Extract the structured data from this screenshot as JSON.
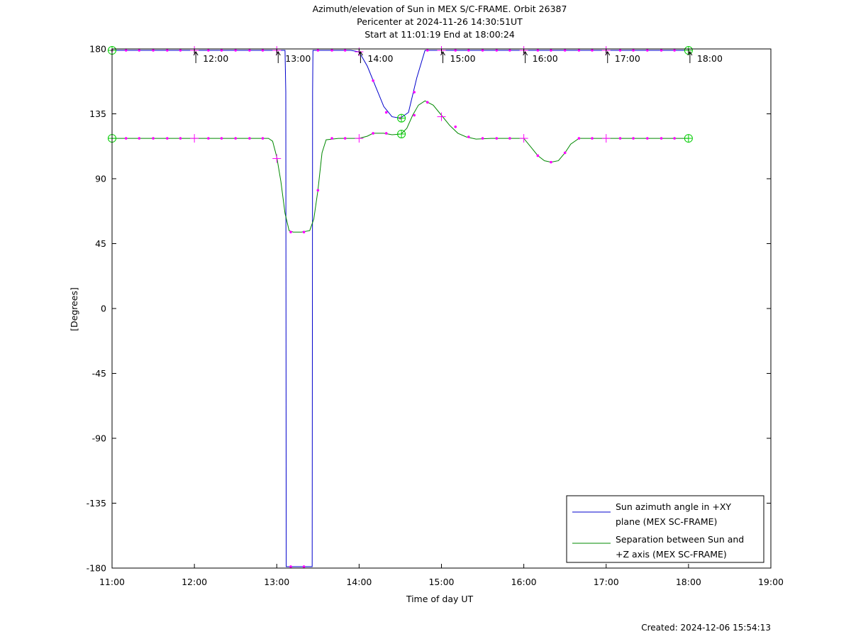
{
  "chart_data": {
    "type": "line",
    "title_lines": [
      "Azimuth/elevation of Sun in MEX S/C-FRAME.  Orbit 26387",
      "Pericenter at 2024-11-26 14:30:51UT",
      "Start at 11:01:19 End at 18:00:24"
    ],
    "xlabel": "Time of day UT",
    "ylabel": "[Degrees]",
    "xlim": [
      11,
      19
    ],
    "ylim": [
      -180,
      180
    ],
    "x_ticks": [
      {
        "v": 11,
        "label": "11:00"
      },
      {
        "v": 12,
        "label": "12:00"
      },
      {
        "v": 13,
        "label": "13:00"
      },
      {
        "v": 14,
        "label": "14:00"
      },
      {
        "v": 15,
        "label": "15:00"
      },
      {
        "v": 16,
        "label": "16:00"
      },
      {
        "v": 17,
        "label": "17:00"
      },
      {
        "v": 18,
        "label": "18:00"
      },
      {
        "v": 19,
        "label": "19:00"
      }
    ],
    "y_ticks": [
      {
        "v": 180,
        "label": "180"
      },
      {
        "v": 135,
        "label": "135"
      },
      {
        "v": 90,
        "label": "90"
      },
      {
        "v": 45,
        "label": "45"
      },
      {
        "v": 0,
        "label": "0"
      },
      {
        "v": -45,
        "label": "-45"
      },
      {
        "v": -90,
        "label": "-90"
      },
      {
        "v": -135,
        "label": "-135"
      },
      {
        "v": -180,
        "label": "-180"
      }
    ],
    "hour_annotations": [
      {
        "x": 12,
        "label": "12:00"
      },
      {
        "x": 13,
        "label": "13:00"
      },
      {
        "x": 14,
        "label": "14:00"
      },
      {
        "x": 15,
        "label": "15:00"
      },
      {
        "x": 16,
        "label": "16:00"
      },
      {
        "x": 17,
        "label": "17:00"
      },
      {
        "x": 18,
        "label": "18:00"
      }
    ],
    "annotation_y": 180,
    "pericenter_x": 14.514,
    "legend_position": "bottom-right",
    "grid": false,
    "series": [
      {
        "name_lines": [
          "Sun azimuth angle in +XY",
          "plane (MEX SC-FRAME)"
        ],
        "color": "#0000cc",
        "x": [
          11.0,
          12.9,
          13.1,
          13.11,
          13.115,
          13.4,
          13.43,
          13.435,
          13.44,
          13.5,
          13.9,
          14.0,
          14.1,
          14.2,
          14.3,
          14.4,
          14.5,
          14.6,
          14.7,
          14.8,
          15.0,
          16.0,
          17.0,
          18.0
        ],
        "y": [
          179,
          179,
          179,
          150,
          -179,
          -179,
          -179,
          150,
          179,
          179,
          179,
          178,
          168,
          154,
          140,
          133,
          132,
          136,
          160,
          179,
          179,
          179,
          179,
          179
        ]
      },
      {
        "name_lines": [
          "Separation between Sun and",
          "+Z axis (MEX SC-FRAME)"
        ],
        "color": "#008800",
        "x": [
          11.0,
          12.9,
          12.95,
          13.0,
          13.05,
          13.1,
          13.15,
          13.2,
          13.3,
          13.4,
          13.45,
          13.5,
          13.55,
          13.6,
          13.75,
          14.0,
          14.1,
          14.17,
          14.3,
          14.4,
          14.51,
          14.58,
          14.65,
          14.72,
          14.8,
          14.9,
          15.0,
          15.1,
          15.2,
          15.3,
          15.42,
          15.6,
          15.8,
          16.0,
          16.1,
          16.17,
          16.25,
          16.33,
          16.42,
          16.5,
          16.57,
          16.67,
          17.0,
          17.5,
          18.0
        ],
        "y": [
          118,
          118,
          116,
          105,
          88,
          66,
          54,
          53,
          53,
          54,
          62,
          82,
          108,
          117,
          118,
          118,
          119.5,
          121.5,
          121.5,
          120.5,
          121,
          125,
          134,
          141,
          144,
          141,
          134,
          127,
          121.5,
          119,
          117.5,
          118,
          118,
          118,
          111,
          106,
          102.5,
          101.5,
          102.5,
          108,
          114,
          118,
          118,
          118,
          118
        ]
      }
    ],
    "markers": {
      "color": "#ff00ff",
      "dots": [
        [
          11.0,
          179
        ],
        [
          11.17,
          179
        ],
        [
          11.33,
          179
        ],
        [
          11.5,
          179
        ],
        [
          11.67,
          179
        ],
        [
          11.83,
          179
        ],
        [
          12.17,
          179
        ],
        [
          12.33,
          179
        ],
        [
          12.5,
          179
        ],
        [
          12.67,
          179
        ],
        [
          12.83,
          179
        ],
        [
          13.5,
          179
        ],
        [
          13.67,
          179
        ],
        [
          13.83,
          179
        ],
        [
          14.17,
          158
        ],
        [
          14.33,
          136
        ],
        [
          14.5,
          132
        ],
        [
          14.67,
          150
        ],
        [
          14.83,
          179
        ],
        [
          15.17,
          179
        ],
        [
          15.33,
          179
        ],
        [
          15.5,
          179
        ],
        [
          15.67,
          179
        ],
        [
          15.83,
          179
        ],
        [
          16.17,
          179
        ],
        [
          16.33,
          179
        ],
        [
          16.5,
          179
        ],
        [
          16.67,
          179
        ],
        [
          16.83,
          179
        ],
        [
          17.17,
          179
        ],
        [
          17.33,
          179
        ],
        [
          17.5,
          179
        ],
        [
          17.67,
          179
        ],
        [
          17.83,
          179
        ],
        [
          11.17,
          118
        ],
        [
          11.33,
          118
        ],
        [
          11.5,
          118
        ],
        [
          11.67,
          118
        ],
        [
          11.83,
          118
        ],
        [
          12.17,
          118
        ],
        [
          12.33,
          118
        ],
        [
          12.5,
          118
        ],
        [
          12.67,
          118
        ],
        [
          12.83,
          118
        ],
        [
          13.17,
          53
        ],
        [
          13.33,
          53
        ],
        [
          13.5,
          82
        ],
        [
          13.67,
          118
        ],
        [
          13.83,
          118
        ],
        [
          14.17,
          121.5
        ],
        [
          14.33,
          121.5
        ],
        [
          14.67,
          134
        ],
        [
          14.83,
          143
        ],
        [
          15.17,
          126
        ],
        [
          15.33,
          119
        ],
        [
          15.5,
          118
        ],
        [
          15.67,
          118
        ],
        [
          15.83,
          118
        ],
        [
          16.17,
          106
        ],
        [
          16.33,
          101.5
        ],
        [
          16.5,
          108
        ],
        [
          16.67,
          118
        ],
        [
          16.83,
          118
        ],
        [
          17.17,
          118
        ],
        [
          17.33,
          118
        ],
        [
          17.5,
          118
        ],
        [
          17.67,
          118
        ],
        [
          17.83,
          118
        ],
        [
          13.17,
          -179
        ],
        [
          13.33,
          -179
        ]
      ],
      "plus": [
        [
          12.0,
          179
        ],
        [
          13.0,
          179
        ],
        [
          14.0,
          178
        ],
        [
          15.0,
          179
        ],
        [
          16.0,
          179
        ],
        [
          17.0,
          179
        ],
        [
          12.0,
          118
        ],
        [
          13.0,
          104
        ],
        [
          14.0,
          118
        ],
        [
          15.0,
          133
        ],
        [
          16.0,
          118
        ],
        [
          17.0,
          118
        ]
      ],
      "circles_color": "#00cc00",
      "circles": [
        [
          11.0,
          179
        ],
        [
          18.0,
          179
        ],
        [
          11.0,
          118
        ],
        [
          18.0,
          118
        ],
        [
          14.514,
          132
        ],
        [
          14.514,
          121
        ]
      ]
    }
  },
  "footer": {
    "created": "Created: 2024-12-06 15:54:13"
  }
}
